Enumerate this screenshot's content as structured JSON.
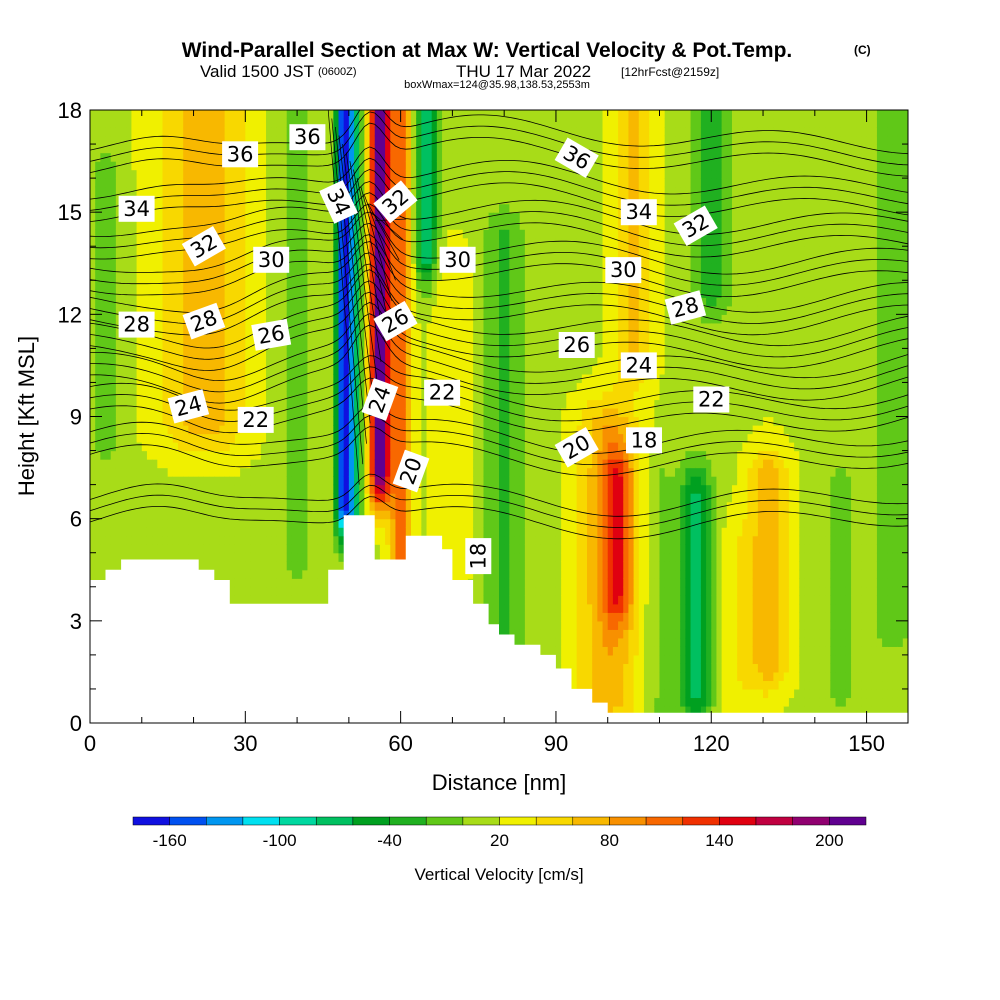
{
  "chart_data": {
    "type": "heatmap",
    "title": "Wind-Parallel Section at Max W: Vertical Velocity & Pot.Temp.",
    "title_mark": "(C)",
    "subtitle_valid": "Valid 1500 JST",
    "subtitle_utc": "(0600Z)",
    "subtitle_date": "THU 17 Mar 2022",
    "subtitle_fcst": "[12hrFcst@2159z]",
    "subtitle_box": "boxWmax=124@35.98,138.53,2553m",
    "xlabel": "Distance [nm]",
    "ylabel": "Height [Kft MSL]",
    "xlim": [
      0,
      158
    ],
    "ylim": [
      0,
      18
    ],
    "x_ticks": [
      {
        "value": 0,
        "label": "0"
      },
      {
        "value": 30,
        "label": "30"
      },
      {
        "value": 60,
        "label": "60"
      },
      {
        "value": 90,
        "label": "90"
      },
      {
        "value": 120,
        "label": "120"
      },
      {
        "value": 150,
        "label": "150"
      }
    ],
    "y_ticks": [
      {
        "value": 0,
        "label": "0"
      },
      {
        "value": 3,
        "label": "3"
      },
      {
        "value": 6,
        "label": "6"
      },
      {
        "value": 9,
        "label": "9"
      },
      {
        "value": 12,
        "label": "12"
      },
      {
        "value": 15,
        "label": "15"
      },
      {
        "value": 18,
        "label": "18"
      }
    ],
    "colorbar": {
      "label": "Vertical Velocity [cm/s]",
      "boundaries": [
        -180,
        -160,
        -140,
        -120,
        -100,
        -80,
        -60,
        -40,
        -20,
        0,
        20,
        40,
        60,
        80,
        100,
        120,
        140,
        160,
        180,
        200,
        220
      ],
      "colors": [
        "#1010e0",
        "#0050f0",
        "#0096f0",
        "#00e0f0",
        "#00d8a0",
        "#00c060",
        "#00a020",
        "#20b020",
        "#60c818",
        "#a8dc18",
        "#f0f000",
        "#f8d800",
        "#f8b800",
        "#f89000",
        "#f86800",
        "#f03000",
        "#e00010",
        "#c00040",
        "#900070",
        "#600090"
      ],
      "tick_labels": [
        {
          "value": -160,
          "label": "-160"
        },
        {
          "value": -100,
          "label": "-100"
        },
        {
          "value": -40,
          "label": "-40"
        },
        {
          "value": 20,
          "label": "20"
        },
        {
          "value": 80,
          "label": "80"
        },
        {
          "value": 140,
          "label": "140"
        },
        {
          "value": 200,
          "label": "200"
        }
      ]
    },
    "velocity_features": [
      {
        "x": 0,
        "halfwidth": 158,
        "z_bot": 0,
        "z_top": 18,
        "w": 15
      },
      {
        "x": 3,
        "halfwidth": 3,
        "z_bot": 8.5,
        "z_top": 16,
        "w": -25
      },
      {
        "x": 22,
        "halfwidth": 9,
        "z_bot": 9,
        "z_top": 18,
        "w": 55
      },
      {
        "x": 40,
        "halfwidth": 4,
        "z_bot": 5,
        "z_top": 18,
        "w": -20
      },
      {
        "x": 49,
        "halfwidth": 1.5,
        "z_bot": 6.5,
        "z_top": 18,
        "w": -170
      },
      {
        "x": 51,
        "halfwidth": 1.5,
        "z_bot": 6,
        "z_top": 18,
        "w": -90
      },
      {
        "x": 56,
        "halfwidth": 2,
        "z_bot": 7.5,
        "z_top": 18,
        "w": 200
      },
      {
        "x": 60,
        "halfwidth": 2,
        "z_bot": 5,
        "z_top": 18,
        "w": 100
      },
      {
        "x": 65,
        "halfwidth": 2,
        "z_bot": 14,
        "z_top": 18,
        "w": -100
      },
      {
        "x": 70,
        "halfwidth": 4,
        "z_bot": 5,
        "z_top": 13,
        "w": 25
      },
      {
        "x": 80,
        "halfwidth": 4,
        "z_bot": 2,
        "z_top": 14,
        "w": -40
      },
      {
        "x": 100,
        "halfwidth": 6,
        "z_bot": 1,
        "z_top": 8.5,
        "w": 60
      },
      {
        "x": 102,
        "halfwidth": 3,
        "z_bot": 4,
        "z_top": 7,
        "w": 80
      },
      {
        "x": 105,
        "halfwidth": 4,
        "z_bot": 11,
        "z_top": 18,
        "w": 50
      },
      {
        "x": 110,
        "halfwidth": 3,
        "z_bot": 0,
        "z_top": 7,
        "w": -20
      },
      {
        "x": 117,
        "halfwidth": 3,
        "z_bot": 1,
        "z_top": 6.5,
        "w": -80
      },
      {
        "x": 125,
        "halfwidth": 3,
        "z_bot": 0,
        "z_top": 5,
        "w": 20
      },
      {
        "x": 131,
        "halfwidth": 4,
        "z_bot": 2,
        "z_top": 7,
        "w": 60
      },
      {
        "x": 120,
        "halfwidth": 4,
        "z_bot": 13,
        "z_top": 18,
        "w": -50
      },
      {
        "x": 145,
        "halfwidth": 3,
        "z_bot": 1,
        "z_top": 7,
        "w": -20
      },
      {
        "x": 155,
        "halfwidth": 4,
        "z_bot": 3,
        "z_top": 18,
        "w": -25
      }
    ],
    "terrain": [
      {
        "x": 0,
        "z": 4.2
      },
      {
        "x": 3,
        "z": 4.2
      },
      {
        "x": 3,
        "z": 4.5
      },
      {
        "x": 6,
        "z": 4.5
      },
      {
        "x": 6,
        "z": 4.8
      },
      {
        "x": 21,
        "z": 4.8
      },
      {
        "x": 21,
        "z": 4.5
      },
      {
        "x": 24,
        "z": 4.5
      },
      {
        "x": 24,
        "z": 4.2
      },
      {
        "x": 27,
        "z": 4.2
      },
      {
        "x": 27,
        "z": 3.5
      },
      {
        "x": 46,
        "z": 3.5
      },
      {
        "x": 46,
        "z": 4.5
      },
      {
        "x": 49,
        "z": 4.5
      },
      {
        "x": 49,
        "z": 6.1
      },
      {
        "x": 55,
        "z": 6.1
      },
      {
        "x": 55,
        "z": 4.8
      },
      {
        "x": 61,
        "z": 4.8
      },
      {
        "x": 61,
        "z": 5.5
      },
      {
        "x": 68,
        "z": 5.5
      },
      {
        "x": 68,
        "z": 5.1
      },
      {
        "x": 70,
        "z": 5.1
      },
      {
        "x": 70,
        "z": 4.2
      },
      {
        "x": 74,
        "z": 4.2
      },
      {
        "x": 74,
        "z": 3.5
      },
      {
        "x": 77,
        "z": 3.5
      },
      {
        "x": 77,
        "z": 2.9
      },
      {
        "x": 79,
        "z": 2.9
      },
      {
        "x": 79,
        "z": 2.6
      },
      {
        "x": 82,
        "z": 2.6
      },
      {
        "x": 82,
        "z": 2.3
      },
      {
        "x": 87,
        "z": 2.3
      },
      {
        "x": 87,
        "z": 2.0
      },
      {
        "x": 90,
        "z": 2.0
      },
      {
        "x": 90,
        "z": 1.6
      },
      {
        "x": 93,
        "z": 1.6
      },
      {
        "x": 93,
        "z": 1.0
      },
      {
        "x": 97,
        "z": 1.0
      },
      {
        "x": 97,
        "z": 0.6
      },
      {
        "x": 100,
        "z": 0.6
      },
      {
        "x": 100,
        "z": 0.3
      },
      {
        "x": 158,
        "z": 0.3
      },
      {
        "x": 158,
        "z": 0
      },
      {
        "x": 0,
        "z": 0
      }
    ],
    "theta_contours": [
      {
        "level": 18,
        "base": 6.0
      },
      {
        "level": 20,
        "base": 7.8
      },
      {
        "level": 22,
        "base": 9.0
      },
      {
        "level": 24,
        "base": 10.0
      },
      {
        "level": 26,
        "base": 11.0
      },
      {
        "level": 28,
        "base": 12.0
      },
      {
        "level": 30,
        "base": 13.1
      },
      {
        "level": 32,
        "base": 14.2
      },
      {
        "level": 34,
        "base": 15.3
      },
      {
        "level": 36,
        "base": 16.6
      }
    ],
    "contour_labels": [
      {
        "x": 9,
        "z": 15.1,
        "text": "34",
        "rot": 0
      },
      {
        "x": 29,
        "z": 16.7,
        "text": "36",
        "rot": 0
      },
      {
        "x": 42,
        "z": 17.2,
        "text": "36",
        "rot": 0
      },
      {
        "x": 48,
        "z": 15.3,
        "text": "34",
        "rot": 65
      },
      {
        "x": 59,
        "z": 15.3,
        "text": "32",
        "rot": -40
      },
      {
        "x": 94,
        "z": 16.6,
        "text": "36",
        "rot": 30
      },
      {
        "x": 106,
        "z": 15.0,
        "text": "34",
        "rot": 0
      },
      {
        "x": 117,
        "z": 14.6,
        "text": "32",
        "rot": -30
      },
      {
        "x": 22,
        "z": 14.0,
        "text": "32",
        "rot": -30
      },
      {
        "x": 35,
        "z": 13.6,
        "text": "30",
        "rot": 0
      },
      {
        "x": 71,
        "z": 13.6,
        "text": "30",
        "rot": 0
      },
      {
        "x": 103,
        "z": 13.3,
        "text": "30",
        "rot": 0
      },
      {
        "x": 9,
        "z": 11.7,
        "text": "28",
        "rot": 0
      },
      {
        "x": 22,
        "z": 11.8,
        "text": "28",
        "rot": -20
      },
      {
        "x": 35,
        "z": 11.4,
        "text": "26",
        "rot": -10
      },
      {
        "x": 59,
        "z": 11.8,
        "text": "26",
        "rot": -30
      },
      {
        "x": 94,
        "z": 11.1,
        "text": "26",
        "rot": 0
      },
      {
        "x": 115,
        "z": 12.2,
        "text": "28",
        "rot": -15
      },
      {
        "x": 106,
        "z": 10.5,
        "text": "24",
        "rot": 0
      },
      {
        "x": 19,
        "z": 9.3,
        "text": "24",
        "rot": -15
      },
      {
        "x": 32,
        "z": 8.9,
        "text": "22",
        "rot": 0
      },
      {
        "x": 56,
        "z": 9.5,
        "text": "24",
        "rot": -70
      },
      {
        "x": 68,
        "z": 9.7,
        "text": "22",
        "rot": 0
      },
      {
        "x": 120,
        "z": 9.5,
        "text": "22",
        "rot": 0
      },
      {
        "x": 94,
        "z": 8.1,
        "text": "20",
        "rot": -30
      },
      {
        "x": 107,
        "z": 8.3,
        "text": "18",
        "rot": 0
      },
      {
        "x": 62,
        "z": 7.4,
        "text": "20",
        "rot": -70
      },
      {
        "x": 75,
        "z": 4.9,
        "text": "18",
        "rot": -90
      }
    ]
  }
}
